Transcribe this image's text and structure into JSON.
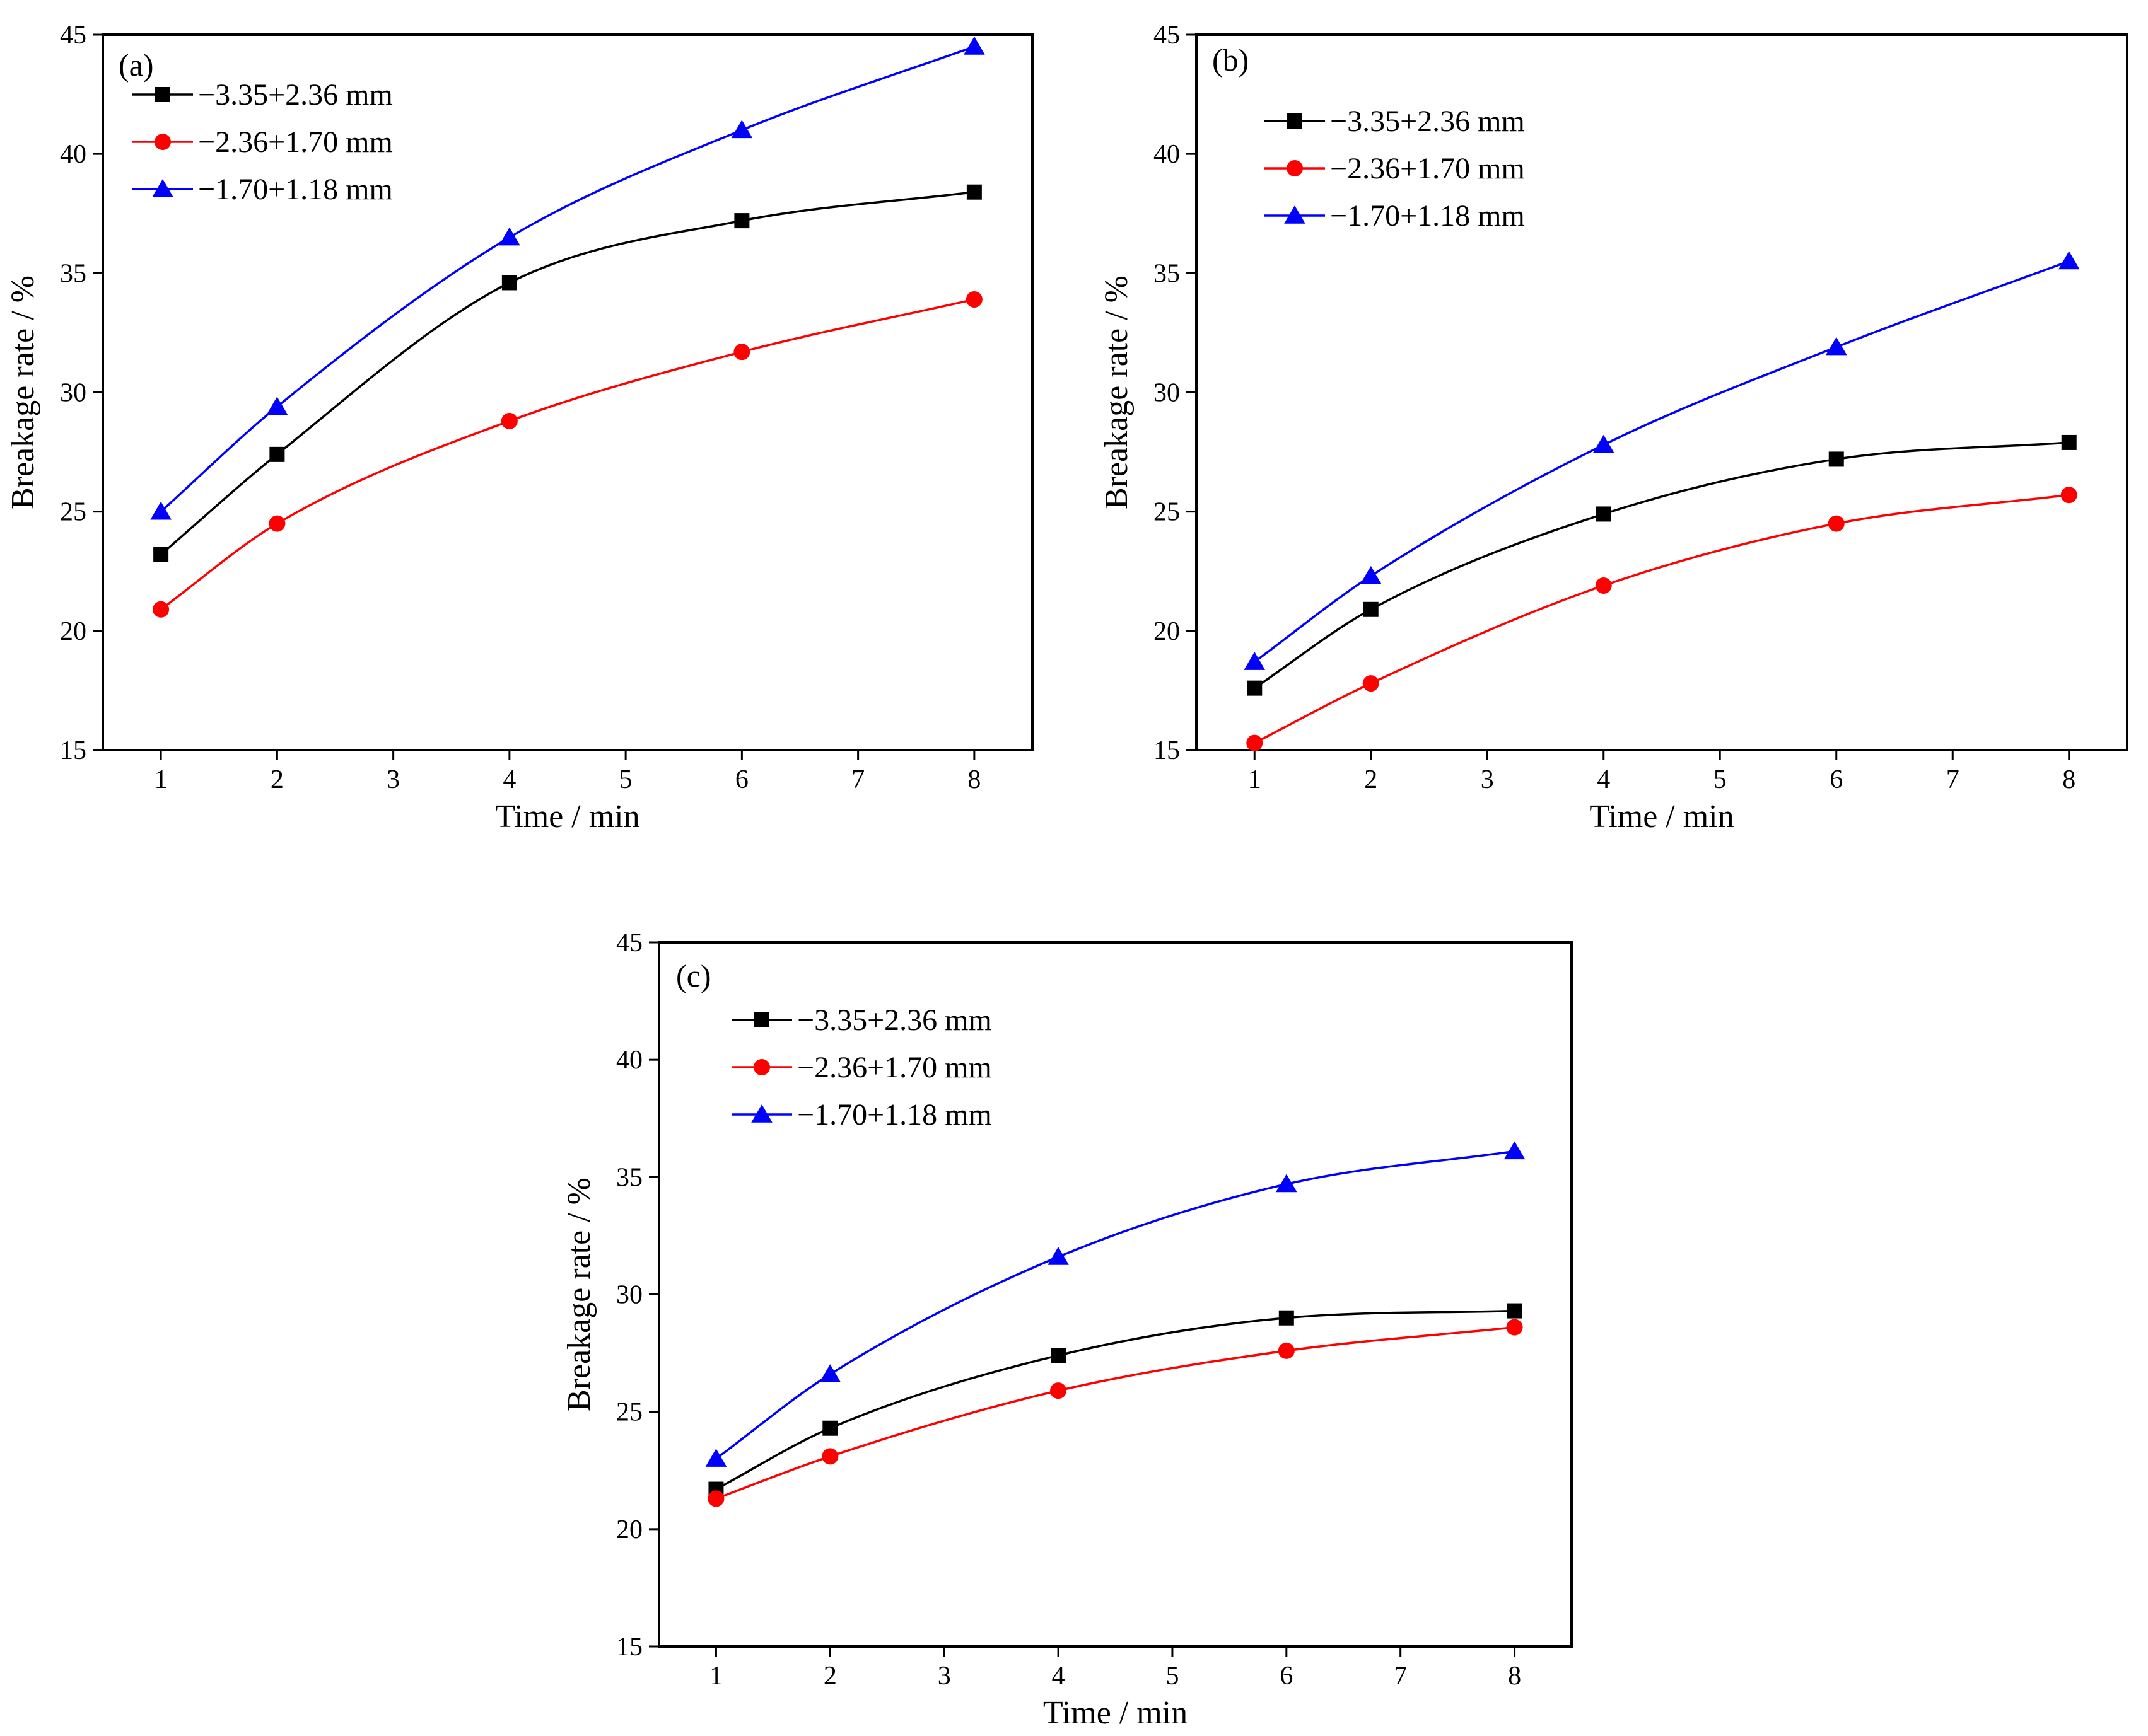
{
  "chart_data": [
    {
      "type": "line",
      "panel_label": "(a)",
      "xlabel": "Time / min",
      "ylabel": "Breakage rate / %",
      "xlim": [
        0.5,
        8.5
      ],
      "ylim": [
        15,
        45
      ],
      "xticks": [
        1,
        2,
        3,
        4,
        5,
        6,
        7,
        8
      ],
      "yticks": [
        15,
        20,
        25,
        30,
        35,
        40,
        45
      ],
      "x": [
        1,
        2,
        4,
        6,
        8
      ],
      "legend_position": "top-left",
      "series": [
        {
          "name": "−3.35+2.36 mm",
          "color": "#000000",
          "marker": "square",
          "values": [
            23.2,
            27.4,
            34.6,
            37.2,
            38.4
          ]
        },
        {
          "name": "−2.36+1.70 mm",
          "color": "#ff0000",
          "marker": "circle",
          "values": [
            20.9,
            24.5,
            28.8,
            31.7,
            33.9
          ]
        },
        {
          "name": "−1.70+1.18 mm",
          "color": "#0000ff",
          "marker": "triangle",
          "values": [
            25.0,
            29.4,
            36.5,
            41.0,
            44.5
          ]
        }
      ]
    },
    {
      "type": "line",
      "panel_label": "(b)",
      "xlabel": "Time / min",
      "ylabel": "Breakage rate / %",
      "xlim": [
        0.5,
        8.5
      ],
      "ylim": [
        15,
        45
      ],
      "xticks": [
        1,
        2,
        3,
        4,
        5,
        6,
        7,
        8
      ],
      "yticks": [
        15,
        20,
        25,
        30,
        35,
        40,
        45
      ],
      "x": [
        1,
        2,
        4,
        6,
        8
      ],
      "legend_position": "top-left",
      "series": [
        {
          "name": "−3.35+2.36 mm",
          "color": "#000000",
          "marker": "square",
          "values": [
            17.6,
            20.9,
            24.9,
            27.2,
            27.9
          ]
        },
        {
          "name": "−2.36+1.70 mm",
          "color": "#ff0000",
          "marker": "circle",
          "values": [
            15.3,
            17.8,
            21.9,
            24.5,
            25.7
          ]
        },
        {
          "name": "−1.70+1.18 mm",
          "color": "#0000ff",
          "marker": "triangle",
          "values": [
            18.7,
            22.3,
            27.8,
            31.9,
            35.5
          ]
        }
      ]
    },
    {
      "type": "line",
      "panel_label": "(c)",
      "xlabel": "Time / min",
      "ylabel": "Breakage rate / %",
      "xlim": [
        0.5,
        8.5
      ],
      "ylim": [
        15,
        45
      ],
      "xticks": [
        1,
        2,
        3,
        4,
        5,
        6,
        7,
        8
      ],
      "yticks": [
        15,
        20,
        25,
        30,
        35,
        40,
        45
      ],
      "x": [
        1,
        2,
        4,
        6,
        8
      ],
      "legend_position": "top-left",
      "series": [
        {
          "name": "−3.35+2.36 mm",
          "color": "#000000",
          "marker": "square",
          "values": [
            21.7,
            24.3,
            27.4,
            29.0,
            29.3
          ]
        },
        {
          "name": "−2.36+1.70 mm",
          "color": "#ff0000",
          "marker": "circle",
          "values": [
            21.3,
            23.1,
            25.9,
            27.6,
            28.6
          ]
        },
        {
          "name": "−1.70+1.18 mm",
          "color": "#0000ff",
          "marker": "triangle",
          "values": [
            23.0,
            26.6,
            31.6,
            34.7,
            36.1
          ]
        }
      ]
    }
  ]
}
